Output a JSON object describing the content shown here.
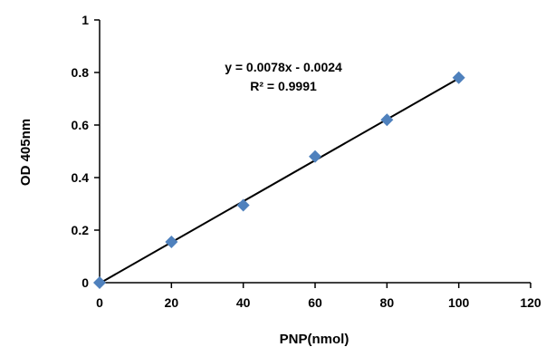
{
  "chart_data": {
    "type": "scatter",
    "title": "",
    "xlabel": "PNP(nmol)",
    "ylabel": "OD 405nm",
    "xlim": [
      0,
      120
    ],
    "ylim": [
      0,
      1
    ],
    "x_ticks": [
      0,
      20,
      40,
      60,
      80,
      100,
      120
    ],
    "y_ticks": [
      0,
      0.2,
      0.4,
      0.6,
      0.8,
      1
    ],
    "x_tick_labels": [
      "0",
      "20",
      "40",
      "60",
      "80",
      "100",
      "120"
    ],
    "y_tick_labels": [
      "0",
      "0.2",
      "0.4",
      "0.6",
      "0.8",
      "1"
    ],
    "grid": false,
    "legend": "none",
    "series": [
      {
        "x": [
          0,
          20,
          40,
          60,
          80,
          100
        ],
        "y": [
          0,
          0.155,
          0.295,
          0.48,
          0.62,
          0.78
        ],
        "color": "#4f81bd",
        "marker": "diamond"
      }
    ],
    "trendline": {
      "slope": 0.0078,
      "intercept": -0.0024,
      "x_range": [
        0,
        100
      ],
      "color": "#000000"
    },
    "annotations": {
      "equation": "y = 0.0078x - 0.0024",
      "r_squared": "R² = 0.9991"
    }
  }
}
